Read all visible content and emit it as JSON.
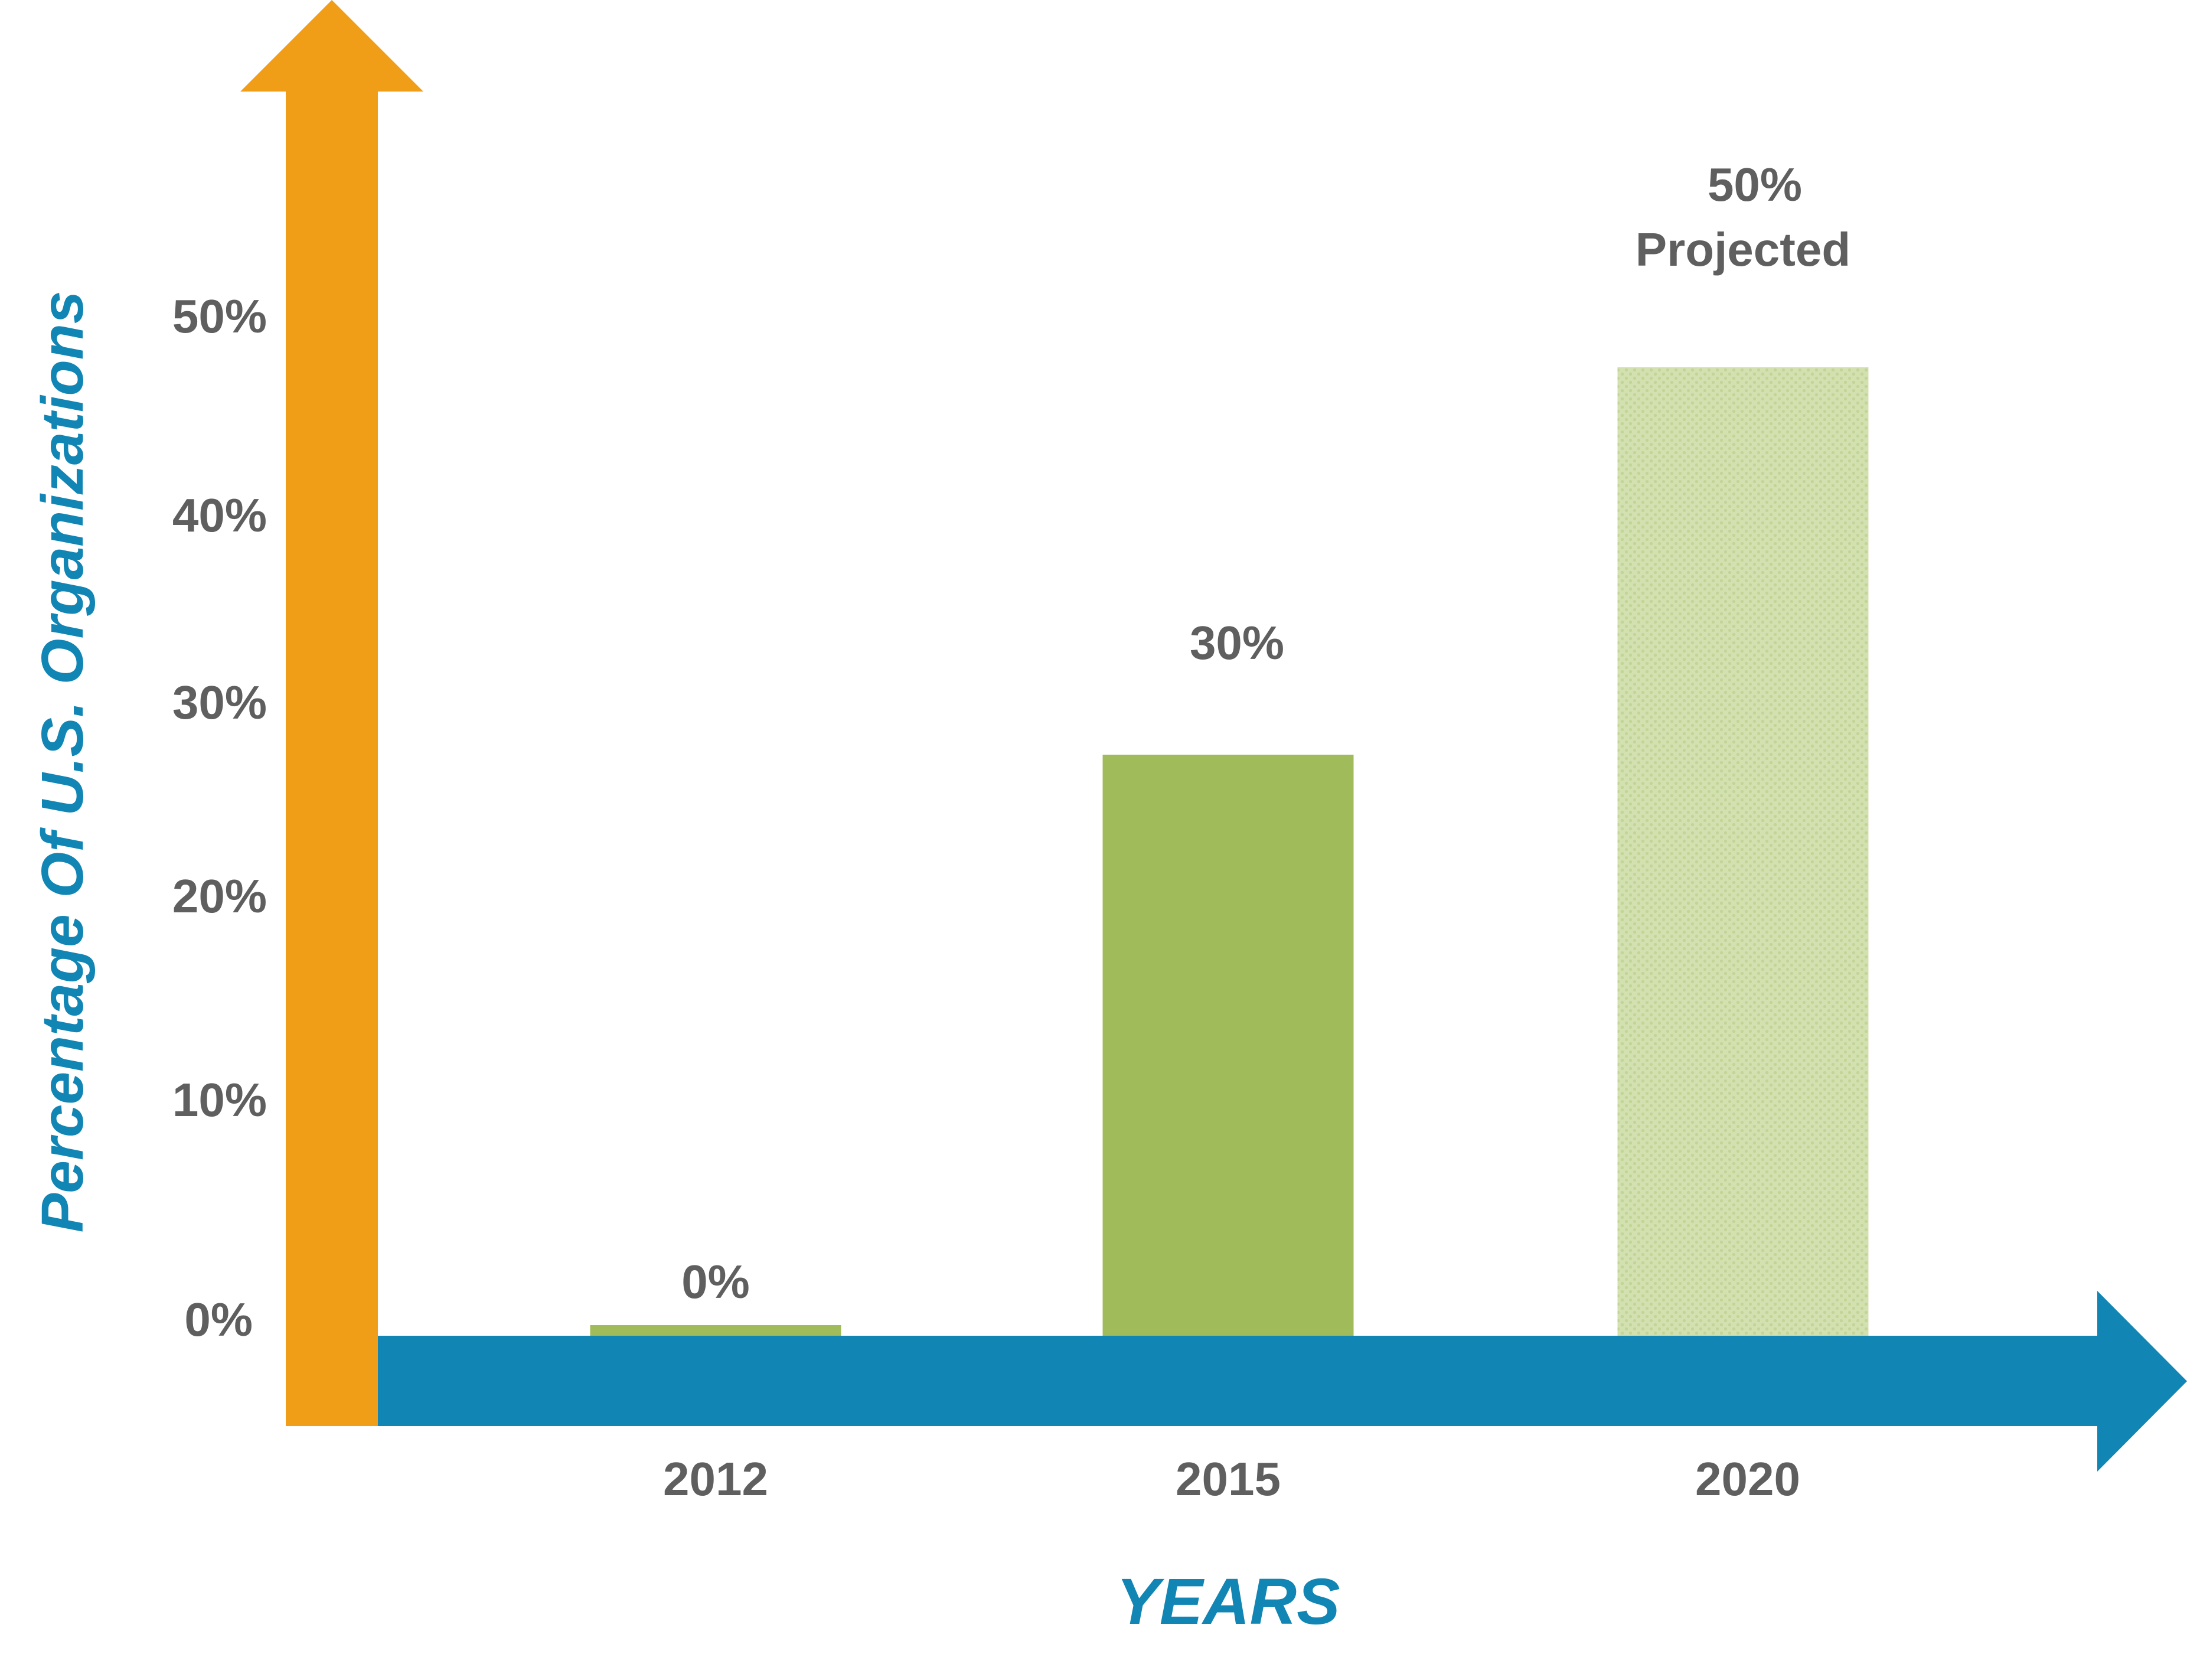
{
  "chart_data": {
    "type": "bar",
    "categories": [
      "2012",
      "2015",
      "2020"
    ],
    "values": [
      0,
      30,
      50
    ],
    "data_labels": [
      "0%",
      "30%",
      [
        "50%",
        "Projected"
      ]
    ],
    "projected": [
      false,
      false,
      true
    ],
    "ylabel": "Percentage Of U.S. Organizations",
    "xlabel": "YEARS",
    "ylim": [
      0,
      50
    ],
    "y_ticks": [
      "0%",
      "10%",
      "20%",
      "30%",
      "40%",
      "50%"
    ],
    "y_tick_values": [
      0,
      10,
      20,
      30,
      40,
      50
    ],
    "grid": false,
    "legend": "none"
  },
  "colors": {
    "y_axis_arrow": "#f09d18",
    "x_axis_arrow": "#1185b4",
    "bar": "#a0bb5a",
    "bar_projected": "#d3e0b0",
    "label_text": "#5f5f5f",
    "axis_title": "#1185b4"
  }
}
